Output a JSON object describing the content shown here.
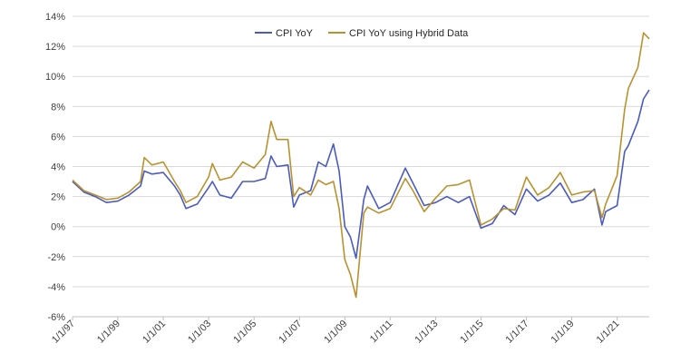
{
  "chart_data": {
    "type": "line",
    "title": "",
    "xlabel": "",
    "ylabel": "",
    "x_range": [
      "1997-01-01",
      "2022-06-01"
    ],
    "x_tick_labels": [
      "1/1/97",
      "1/1/99",
      "1/1/01",
      "1/1/03",
      "1/1/05",
      "1/1/07",
      "1/1/09",
      "1/1/11",
      "1/1/13",
      "1/1/15",
      "1/1/17",
      "1/1/19",
      "1/1/21"
    ],
    "ylim": [
      -6,
      14
    ],
    "y_ticks": [
      -6,
      -4,
      -2,
      0,
      2,
      4,
      6,
      8,
      10,
      12,
      14
    ],
    "y_tick_labels": [
      "-6%",
      "-4%",
      "-2%",
      "0%",
      "2%",
      "4%",
      "6%",
      "8%",
      "10%",
      "12%",
      "14%"
    ],
    "grid": "horizontal",
    "legend_position": "top-center",
    "series": [
      {
        "name": "CPI YoY",
        "color": "#4a5bc0",
        "points": [
          [
            "1997-01-01",
            3.0
          ],
          [
            "1997-07-01",
            2.3
          ],
          [
            "1998-01-01",
            2.0
          ],
          [
            "1998-07-01",
            1.6
          ],
          [
            "1999-01-01",
            1.7
          ],
          [
            "1999-07-01",
            2.1
          ],
          [
            "2000-01-01",
            2.7
          ],
          [
            "2000-03-01",
            3.7
          ],
          [
            "2000-07-01",
            3.5
          ],
          [
            "2001-01-01",
            3.6
          ],
          [
            "2001-07-01",
            2.7
          ],
          [
            "2001-10-01",
            2.1
          ],
          [
            "2002-01-01",
            1.2
          ],
          [
            "2002-07-01",
            1.5
          ],
          [
            "2003-01-01",
            2.6
          ],
          [
            "2003-03-01",
            3.0
          ],
          [
            "2003-07-01",
            2.1
          ],
          [
            "2004-01-01",
            1.9
          ],
          [
            "2004-07-01",
            3.0
          ],
          [
            "2005-01-01",
            3.0
          ],
          [
            "2005-07-01",
            3.2
          ],
          [
            "2005-10-01",
            4.7
          ],
          [
            "2006-01-01",
            4.0
          ],
          [
            "2006-07-01",
            4.1
          ],
          [
            "2006-10-01",
            1.3
          ],
          [
            "2007-01-01",
            2.1
          ],
          [
            "2007-07-01",
            2.4
          ],
          [
            "2007-11-01",
            4.3
          ],
          [
            "2008-03-01",
            4.0
          ],
          [
            "2008-07-01",
            5.5
          ],
          [
            "2008-10-01",
            3.7
          ],
          [
            "2009-01-01",
            0.0
          ],
          [
            "2009-04-01",
            -0.7
          ],
          [
            "2009-07-01",
            -2.1
          ],
          [
            "2009-11-01",
            1.8
          ],
          [
            "2010-01-01",
            2.7
          ],
          [
            "2010-07-01",
            1.2
          ],
          [
            "2011-01-01",
            1.6
          ],
          [
            "2011-09-01",
            3.9
          ],
          [
            "2012-01-01",
            2.9
          ],
          [
            "2012-07-01",
            1.4
          ],
          [
            "2013-01-01",
            1.6
          ],
          [
            "2013-07-01",
            2.0
          ],
          [
            "2014-01-01",
            1.6
          ],
          [
            "2014-07-01",
            2.0
          ],
          [
            "2015-01-01",
            -0.1
          ],
          [
            "2015-07-01",
            0.2
          ],
          [
            "2016-01-01",
            1.4
          ],
          [
            "2016-07-01",
            0.8
          ],
          [
            "2017-01-01",
            2.5
          ],
          [
            "2017-07-01",
            1.7
          ],
          [
            "2018-01-01",
            2.1
          ],
          [
            "2018-07-01",
            2.9
          ],
          [
            "2019-01-01",
            1.6
          ],
          [
            "2019-07-01",
            1.8
          ],
          [
            "2020-01-01",
            2.5
          ],
          [
            "2020-05-01",
            0.1
          ],
          [
            "2020-07-01",
            1.0
          ],
          [
            "2021-01-01",
            1.4
          ],
          [
            "2021-05-01",
            5.0
          ],
          [
            "2021-07-01",
            5.4
          ],
          [
            "2021-12-01",
            7.0
          ],
          [
            "2022-03-01",
            8.5
          ],
          [
            "2022-06-01",
            9.1
          ]
        ]
      },
      {
        "name": "CPI  YoY using Hybrid Data",
        "color": "#b8922e",
        "points": [
          [
            "1997-01-01",
            3.1
          ],
          [
            "1997-07-01",
            2.4
          ],
          [
            "1998-01-01",
            2.1
          ],
          [
            "1998-07-01",
            1.8
          ],
          [
            "1999-01-01",
            1.9
          ],
          [
            "1999-07-01",
            2.3
          ],
          [
            "2000-01-01",
            3.0
          ],
          [
            "2000-03-01",
            4.6
          ],
          [
            "2000-07-01",
            4.1
          ],
          [
            "2001-01-01",
            4.3
          ],
          [
            "2001-07-01",
            3.0
          ],
          [
            "2001-10-01",
            2.4
          ],
          [
            "2002-01-01",
            1.6
          ],
          [
            "2002-07-01",
            2.0
          ],
          [
            "2003-01-01",
            3.3
          ],
          [
            "2003-03-01",
            4.2
          ],
          [
            "2003-07-01",
            3.1
          ],
          [
            "2004-01-01",
            3.3
          ],
          [
            "2004-07-01",
            4.3
          ],
          [
            "2005-01-01",
            3.9
          ],
          [
            "2005-07-01",
            4.8
          ],
          [
            "2005-10-01",
            7.0
          ],
          [
            "2006-01-01",
            5.8
          ],
          [
            "2006-07-01",
            5.8
          ],
          [
            "2006-10-01",
            2.0
          ],
          [
            "2007-01-01",
            2.6
          ],
          [
            "2007-07-01",
            2.1
          ],
          [
            "2007-11-01",
            3.1
          ],
          [
            "2008-03-01",
            2.8
          ],
          [
            "2008-07-01",
            3.0
          ],
          [
            "2008-10-01",
            1.2
          ],
          [
            "2009-01-01",
            -2.2
          ],
          [
            "2009-04-01",
            -3.2
          ],
          [
            "2009-07-01",
            -4.7
          ],
          [
            "2009-11-01",
            0.9
          ],
          [
            "2010-01-01",
            1.3
          ],
          [
            "2010-07-01",
            0.9
          ],
          [
            "2011-01-01",
            1.2
          ],
          [
            "2011-09-01",
            3.2
          ],
          [
            "2012-01-01",
            2.4
          ],
          [
            "2012-07-01",
            1.0
          ],
          [
            "2013-01-01",
            1.9
          ],
          [
            "2013-07-01",
            2.7
          ],
          [
            "2014-01-01",
            2.8
          ],
          [
            "2014-07-01",
            3.1
          ],
          [
            "2015-01-01",
            0.1
          ],
          [
            "2015-07-01",
            0.5
          ],
          [
            "2016-01-01",
            1.2
          ],
          [
            "2016-07-01",
            1.1
          ],
          [
            "2017-01-01",
            3.3
          ],
          [
            "2017-07-01",
            2.1
          ],
          [
            "2018-01-01",
            2.6
          ],
          [
            "2018-07-01",
            3.6
          ],
          [
            "2019-01-01",
            2.1
          ],
          [
            "2019-07-01",
            2.3
          ],
          [
            "2020-01-01",
            2.4
          ],
          [
            "2020-05-01",
            0.6
          ],
          [
            "2020-07-01",
            1.5
          ],
          [
            "2021-01-01",
            3.4
          ],
          [
            "2021-05-01",
            7.8
          ],
          [
            "2021-07-01",
            9.2
          ],
          [
            "2021-12-01",
            10.6
          ],
          [
            "2022-03-01",
            12.9
          ],
          [
            "2022-06-01",
            12.5
          ]
        ]
      }
    ]
  }
}
